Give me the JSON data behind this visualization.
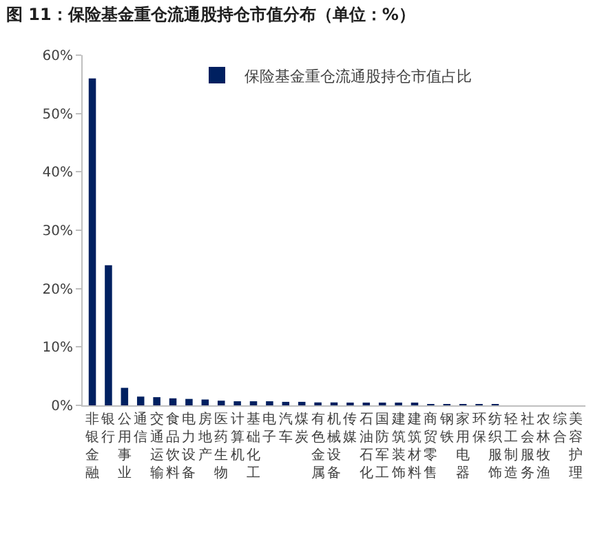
{
  "chart_data": {
    "type": "bar",
    "title": "图 11：保险基金重仓流通股持仓市值分布（单位：%）",
    "categories": [
      "非银金融",
      "银行",
      "公用事业",
      "通信",
      "交通运输",
      "食品饮料",
      "电力设备",
      "房地产",
      "医药生物",
      "计算机",
      "基础化工",
      "电子",
      "汽车",
      "煤炭",
      "有色金属",
      "机械设备",
      "传媒",
      "石油石化",
      "国防军工",
      "建筑装饰",
      "建筑材料",
      "商贸零售",
      "钢铁",
      "家用电器",
      "环保",
      "纺织服饰",
      "轻工制造",
      "社会服务",
      "农林牧渔",
      "综合",
      "美容护理"
    ],
    "series": [
      {
        "name": "保险基金重仓流通股持仓市值占比",
        "color": "#002060",
        "values": [
          56,
          24,
          3,
          1.5,
          1.4,
          1.2,
          1.1,
          1.0,
          0.8,
          0.7,
          0.7,
          0.7,
          0.6,
          0.6,
          0.5,
          0.5,
          0.4,
          0.4,
          0.3,
          0.3,
          0.3,
          0.2,
          0.2,
          0.1,
          0.1,
          0.1,
          0,
          0,
          0,
          0,
          0
        ]
      }
    ],
    "ylim": [
      0,
      60
    ],
    "yticks": [
      {
        "value": 0,
        "label": "0%"
      },
      {
        "value": 10,
        "label": "10%"
      },
      {
        "value": 20,
        "label": "20%"
      },
      {
        "value": 30,
        "label": "30%"
      },
      {
        "value": 40,
        "label": "40%"
      },
      {
        "value": 50,
        "label": "50%"
      },
      {
        "value": 60,
        "label": "60%"
      }
    ],
    "legend": "top"
  }
}
